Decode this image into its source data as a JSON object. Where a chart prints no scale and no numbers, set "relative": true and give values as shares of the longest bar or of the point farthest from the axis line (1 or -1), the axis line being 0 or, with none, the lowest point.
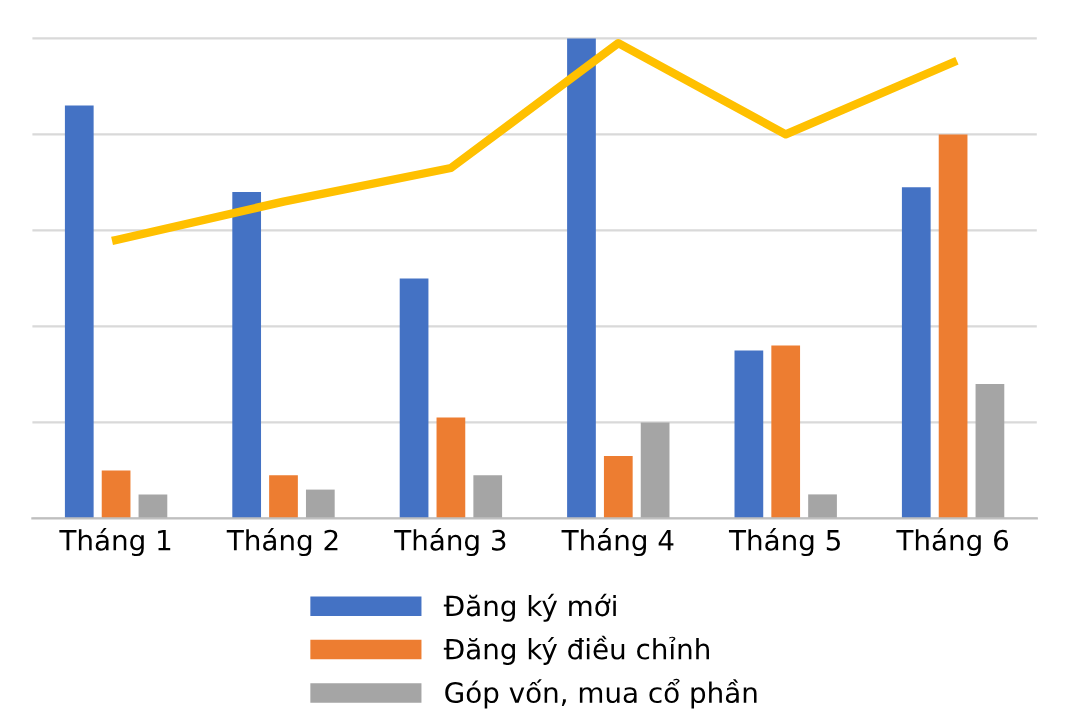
{
  "chart_data": {
    "type": "bar",
    "relative": true,
    "categories": [
      "Tháng 1",
      "Tháng 2",
      "Tháng 3",
      "Tháng 4",
      "Tháng 5",
      "Tháng 6"
    ],
    "series": [
      {
        "name": "Đăng ký mới",
        "color": "#4472c4",
        "values": [
          0.86,
          0.68,
          0.5,
          1.0,
          0.35,
          0.69
        ]
      },
      {
        "name": "Đăng ký điều chỉnh",
        "color": "#ed7d31",
        "values": [
          0.1,
          0.09,
          0.21,
          0.13,
          0.36,
          0.8
        ]
      },
      {
        "name": "Góp vốn, mua cổ phần",
        "color": "#a5a5a5",
        "values": [
          0.05,
          0.06,
          0.09,
          0.2,
          0.05,
          0.28
        ]
      },
      {
        "type": "line",
        "color": "#ffc000",
        "values": [
          0.58,
          0.66,
          0.73,
          0.99,
          0.8,
          0.95
        ]
      }
    ],
    "grid": "y",
    "legend": "bottom"
  }
}
